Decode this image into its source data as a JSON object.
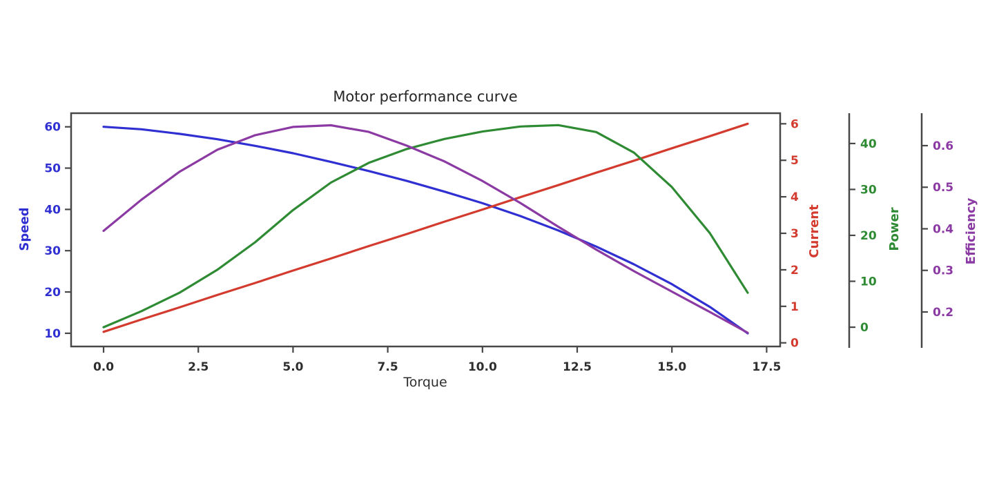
{
  "chart_data": {
    "type": "line",
    "title": "Motor performance curve",
    "xlabel": "Torque",
    "grid": false,
    "legend": "none",
    "x_axis": {
      "label": "Torque",
      "ticks": [
        0,
        2.5,
        5,
        7.5,
        10,
        12.5,
        15,
        17.5
      ],
      "tick_labels": [
        "0.0",
        "2.5",
        "5.0",
        "7.5",
        "10.0",
        "12.5",
        "15.0",
        "17.5"
      ],
      "range": [
        -0.857,
        17.857
      ],
      "color": "#2e2e2e"
    },
    "x": [
      0,
      1,
      2,
      3,
      4,
      5,
      6,
      7,
      8,
      9,
      10,
      11,
      12,
      13,
      14,
      15,
      16,
      17
    ],
    "series": [
      {
        "name": "Speed",
        "axis": "speed",
        "color": "#2f2fd2",
        "values": [
          60,
          59.4,
          58.3,
          57.0,
          55.4,
          53.6,
          51.5,
          49.3,
          46.9,
          44.3,
          41.5,
          38.4,
          34.9,
          31.0,
          26.7,
          21.9,
          16.4,
          10.0
        ]
      },
      {
        "name": "Current",
        "axis": "current",
        "color": "#d23b2e",
        "values": [
          0.3,
          0.64,
          0.97,
          1.31,
          1.64,
          1.98,
          2.31,
          2.65,
          2.98,
          3.32,
          3.65,
          3.99,
          4.32,
          4.66,
          4.99,
          5.33,
          5.66,
          6.0
        ]
      },
      {
        "name": "Power",
        "axis": "power",
        "color": "#2e8b33",
        "values": [
          0,
          3.5,
          7.5,
          12.5,
          18.5,
          25.5,
          31.5,
          35.8,
          38.8,
          41.0,
          42.6,
          43.7,
          44.0,
          42.5,
          38.0,
          30.5,
          20.5,
          7.5
        ]
      },
      {
        "name": "Efficiency",
        "axis": "efficiency",
        "color": "#8c3aa3",
        "values": [
          0.395,
          0.47,
          0.537,
          0.59,
          0.625,
          0.645,
          0.649,
          0.633,
          0.6,
          0.562,
          0.515,
          0.462,
          0.405,
          0.35,
          0.298,
          0.249,
          0.2,
          0.15
        ]
      }
    ],
    "axes": {
      "speed": {
        "label": "Speed",
        "side": "left",
        "color": "#2f2fd2",
        "ticks": [
          10,
          20,
          30,
          40,
          50,
          60
        ],
        "tick_labels": [
          "10",
          "20",
          "30",
          "40",
          "50",
          "60"
        ],
        "range": [
          6.8,
          63.3
        ]
      },
      "current": {
        "label": "Current",
        "side": "right",
        "color": "#d23b2e",
        "ticks": [
          0,
          1,
          2,
          3,
          4,
          5,
          6
        ],
        "tick_labels": [
          "0",
          "1",
          "2",
          "3",
          "4",
          "5",
          "6"
        ],
        "range": [
          -0.1,
          6.29
        ]
      },
      "power": {
        "label": "Power",
        "side": "right-offset-1",
        "color": "#2e8b33",
        "ticks": [
          0,
          10,
          20,
          30,
          40
        ],
        "tick_labels": [
          "0",
          "10",
          "20",
          "30",
          "40"
        ],
        "range": [
          -4.2,
          46.6
        ]
      },
      "efficiency": {
        "label": "Efficiency",
        "side": "right-offset-2",
        "color": "#8c3aa3",
        "ticks": [
          0.2,
          0.3,
          0.4,
          0.5,
          0.6
        ],
        "tick_labels": [
          "0.2",
          "0.3",
          "0.4",
          "0.5",
          "0.6"
        ],
        "range": [
          0.117,
          0.678
        ]
      }
    }
  }
}
